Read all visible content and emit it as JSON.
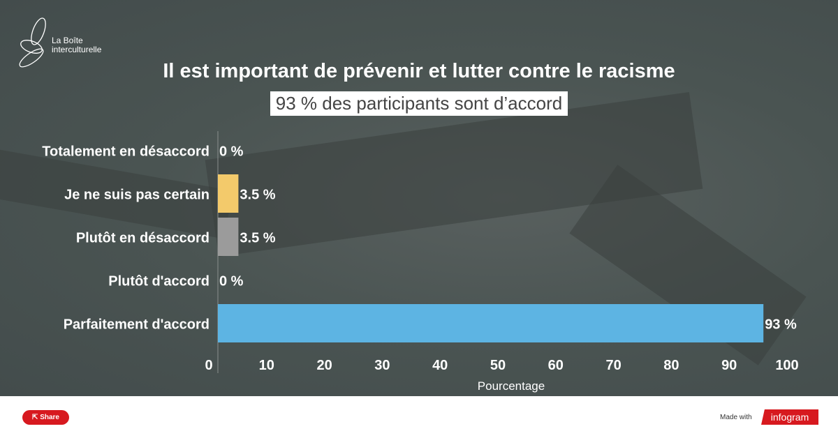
{
  "brand": {
    "logo_text_line1": "La Boîte",
    "logo_text_line2": "interculturelle"
  },
  "footer": {
    "share_label": "Share",
    "made_with": "Made with",
    "infogram": "infogram"
  },
  "colors": {
    "background": "#4a5452",
    "bar_blue": "#5db4e3",
    "bar_yellow": "#f3ca6b",
    "bar_gray": "#9b9b9b",
    "share_red": "#d7191f"
  },
  "chart_data": {
    "type": "bar",
    "orientation": "horizontal",
    "title": "Il est important de prévenir et lutter contre le racisme",
    "subtitle": "93 % des participants sont d’accord",
    "xlabel": "Pourcentage",
    "xlim": [
      0,
      100
    ],
    "xticks": [
      "0",
      "10",
      "20",
      "30",
      "40",
      "50",
      "60",
      "70",
      "80",
      "90",
      "100"
    ],
    "categories": [
      "Totalement en désaccord",
      "Je ne suis pas certain",
      "Plutôt en désaccord",
      "Plutôt d'accord",
      "Parfaitement d'accord"
    ],
    "values": [
      0,
      3.5,
      3.5,
      0,
      93
    ],
    "labels": [
      "0 %",
      "3.5 %",
      "3.5 %",
      "0 %",
      "93 %"
    ],
    "bar_colors": [
      "#5db4e3",
      "#f3ca6b",
      "#9b9b9b",
      "#5db4e3",
      "#5db4e3"
    ],
    "grid": false
  }
}
